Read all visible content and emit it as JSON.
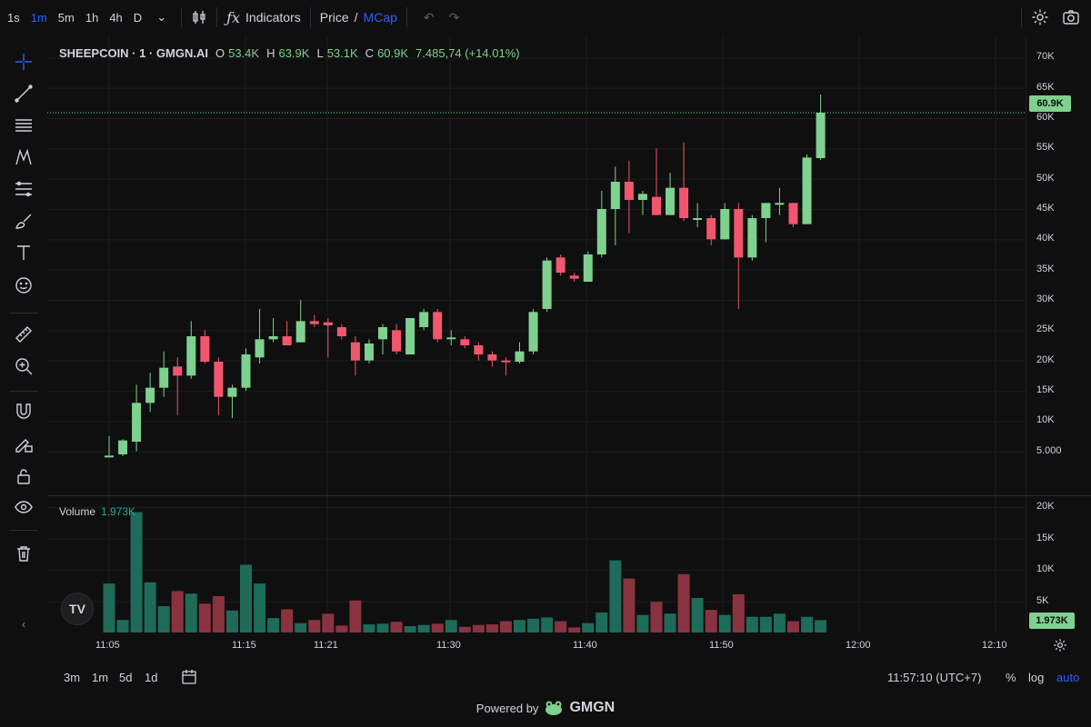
{
  "toolbar": {
    "timeframes": [
      "1s",
      "1m",
      "5m",
      "1h",
      "4h",
      "D"
    ],
    "active_timeframe": "1m",
    "indicators_label": "Indicators",
    "price_label": "Price",
    "slash": "/",
    "mcap_label": "MCap"
  },
  "legend": {
    "symbol": "SHEEPCOIN · 1 · GMGN.AI",
    "open_label": "O",
    "open": "53.4K",
    "high_label": "H",
    "high": "63.9K",
    "low_label": "L",
    "low": "53.1K",
    "close_label": "C",
    "close": "60.9K",
    "change": "7.485,74 (+14.01%)"
  },
  "volume_legend": {
    "label": "Volume",
    "value": "1.973K"
  },
  "price_tag": "60.9K",
  "volume_tag": "1.973K",
  "price_axis": [
    "70K",
    "65K",
    "60K",
    "55K",
    "50K",
    "45K",
    "40K",
    "35K",
    "30K",
    "25K",
    "20K",
    "15K",
    "10K",
    "5.000"
  ],
  "volume_axis": [
    "20K",
    "15K",
    "10K",
    "5K"
  ],
  "time_axis": [
    "11:05",
    "11:15",
    "11:21",
    "11:30",
    "11:40",
    "11:50",
    "12:00",
    "12:10"
  ],
  "bottom": {
    "ranges": [
      "3m",
      "1m",
      "5d",
      "1d"
    ],
    "clock": "11:57:10 (UTC+7)",
    "percent": "%",
    "log": "log",
    "auto": "auto"
  },
  "powered_by": {
    "text": "Powered by",
    "brand": "GMGN"
  },
  "tv_logo": "TV",
  "colors": {
    "up": "#7fd18f",
    "down": "#f2566f",
    "vol_up": "#1e6b5a",
    "vol_down": "#8a3340",
    "accent": "#2962ff"
  },
  "chart_data": {
    "type": "candlestick",
    "candles": [
      {
        "t": "11:05",
        "o": 4.2,
        "h": 7.5,
        "l": 4.0,
        "c": 4.3
      },
      {
        "t": "11:06",
        "o": 4.5,
        "h": 7.0,
        "l": 4.2,
        "c": 6.8
      },
      {
        "t": "11:07",
        "o": 6.6,
        "h": 16.0,
        "l": 5.0,
        "c": 13.0
      },
      {
        "t": "11:08",
        "o": 13.0,
        "h": 18.0,
        "l": 11.5,
        "c": 15.5
      },
      {
        "t": "11:09",
        "o": 15.5,
        "h": 21.5,
        "l": 14.0,
        "c": 18.8
      },
      {
        "t": "11:10",
        "o": 19.0,
        "h": 20.5,
        "l": 11.0,
        "c": 17.5
      },
      {
        "t": "11:11",
        "o": 17.5,
        "h": 26.5,
        "l": 17.0,
        "c": 24.0
      },
      {
        "t": "11:12",
        "o": 24.0,
        "h": 25.0,
        "l": 19.5,
        "c": 19.8
      },
      {
        "t": "11:13",
        "o": 19.8,
        "h": 20.5,
        "l": 11.0,
        "c": 14.0
      },
      {
        "t": "11:14",
        "o": 14.0,
        "h": 16.0,
        "l": 10.5,
        "c": 15.5
      },
      {
        "t": "11:15",
        "o": 15.5,
        "h": 22.0,
        "l": 15.0,
        "c": 21.0
      },
      {
        "t": "11:16",
        "o": 20.5,
        "h": 28.5,
        "l": 19.5,
        "c": 23.5
      },
      {
        "t": "11:17",
        "o": 23.5,
        "h": 27.0,
        "l": 23.0,
        "c": 24.0
      },
      {
        "t": "11:18",
        "o": 24.0,
        "h": 26.5,
        "l": 22.5,
        "c": 22.5
      },
      {
        "t": "11:19",
        "o": 23.0,
        "h": 30.0,
        "l": 23.0,
        "c": 26.5
      },
      {
        "t": "11:20",
        "o": 26.5,
        "h": 27.5,
        "l": 25.5,
        "c": 26.0
      },
      {
        "t": "11:21",
        "o": 26.3,
        "h": 27.0,
        "l": 20.5,
        "c": 25.8
      },
      {
        "t": "11:22",
        "o": 25.5,
        "h": 26.0,
        "l": 23.5,
        "c": 24.0
      },
      {
        "t": "11:23",
        "o": 23.0,
        "h": 24.0,
        "l": 17.5,
        "c": 20.0
      },
      {
        "t": "11:24",
        "o": 20.0,
        "h": 23.5,
        "l": 19.5,
        "c": 22.8
      },
      {
        "t": "11:25",
        "o": 23.5,
        "h": 26.0,
        "l": 21.0,
        "c": 25.5
      },
      {
        "t": "11:26",
        "o": 25.0,
        "h": 26.0,
        "l": 21.0,
        "c": 21.5
      },
      {
        "t": "11:27",
        "o": 21.0,
        "h": 27.0,
        "l": 21.0,
        "c": 27.0
      },
      {
        "t": "11:28",
        "o": 25.5,
        "h": 28.5,
        "l": 25.0,
        "c": 28.0
      },
      {
        "t": "11:29",
        "o": 28.0,
        "h": 28.5,
        "l": 23.0,
        "c": 23.5
      },
      {
        "t": "11:30",
        "o": 23.5,
        "h": 25.0,
        "l": 22.5,
        "c": 23.8
      },
      {
        "t": "11:31",
        "o": 23.5,
        "h": 24.0,
        "l": 22.0,
        "c": 22.5
      },
      {
        "t": "11:32",
        "o": 22.5,
        "h": 23.0,
        "l": 20.0,
        "c": 21.0
      },
      {
        "t": "11:33",
        "o": 21.0,
        "h": 21.5,
        "l": 19.0,
        "c": 20.0
      },
      {
        "t": "11:34",
        "o": 20.0,
        "h": 20.5,
        "l": 17.5,
        "c": 19.8
      },
      {
        "t": "11:35",
        "o": 19.8,
        "h": 23.0,
        "l": 19.5,
        "c": 21.5
      },
      {
        "t": "11:36",
        "o": 21.5,
        "h": 28.5,
        "l": 21.0,
        "c": 28.0
      },
      {
        "t": "11:37",
        "o": 28.5,
        "h": 37.0,
        "l": 28.0,
        "c": 36.5
      },
      {
        "t": "11:38",
        "o": 37.0,
        "h": 37.5,
        "l": 34.0,
        "c": 34.5
      },
      {
        "t": "11:39",
        "o": 34.0,
        "h": 34.5,
        "l": 33.0,
        "c": 33.5
      },
      {
        "t": "11:40",
        "o": 33.0,
        "h": 38.0,
        "l": 33.0,
        "c": 37.5
      },
      {
        "t": "11:41",
        "o": 37.5,
        "h": 48.0,
        "l": 37.0,
        "c": 45.0
      },
      {
        "t": "11:42",
        "o": 45.0,
        "h": 52.0,
        "l": 39.0,
        "c": 49.5
      },
      {
        "t": "11:43",
        "o": 49.5,
        "h": 53.0,
        "l": 41.0,
        "c": 46.5
      },
      {
        "t": "11:44",
        "o": 46.5,
        "h": 48.0,
        "l": 44.0,
        "c": 47.5
      },
      {
        "t": "11:45",
        "o": 47.0,
        "h": 55.0,
        "l": 44.0,
        "c": 44.0
      },
      {
        "t": "11:46",
        "o": 44.0,
        "h": 51.0,
        "l": 44.0,
        "c": 48.5
      },
      {
        "t": "11:47",
        "o": 48.5,
        "h": 56.0,
        "l": 43.0,
        "c": 43.5
      },
      {
        "t": "11:48",
        "o": 43.5,
        "h": 46.0,
        "l": 42.0,
        "c": 43.5
      },
      {
        "t": "11:49",
        "o": 43.5,
        "h": 44.0,
        "l": 39.0,
        "c": 40.0
      },
      {
        "t": "11:50",
        "o": 40.0,
        "h": 46.0,
        "l": 40.0,
        "c": 45.0
      },
      {
        "t": "11:51",
        "o": 45.0,
        "h": 46.0,
        "l": 28.5,
        "c": 37.0
      },
      {
        "t": "11:52",
        "o": 37.0,
        "h": 44.0,
        "l": 36.5,
        "c": 43.5
      },
      {
        "t": "11:53",
        "o": 43.5,
        "h": 46.0,
        "l": 39.5,
        "c": 46.0
      },
      {
        "t": "11:54",
        "o": 46.0,
        "h": 48.5,
        "l": 44.0,
        "c": 46.0
      },
      {
        "t": "11:55",
        "o": 46.0,
        "h": 46.0,
        "l": 42.0,
        "c": 42.5
      },
      {
        "t": "11:56",
        "o": 42.5,
        "h": 54.0,
        "l": 42.5,
        "c": 53.5
      },
      {
        "t": "11:57",
        "o": 53.4,
        "h": 63.9,
        "l": 53.1,
        "c": 60.9
      }
    ],
    "volumes": [
      7.8,
      2.0,
      19.2,
      8.0,
      4.2,
      6.6,
      6.2,
      4.6,
      5.8,
      3.5,
      10.8,
      7.8,
      2.3,
      3.7,
      1.5,
      2.0,
      3.0,
      1.1,
      5.1,
      1.3,
      1.4,
      1.7,
      1.0,
      1.2,
      1.4,
      2.0,
      0.9,
      1.2,
      1.3,
      1.8,
      2.0,
      2.2,
      2.4,
      1.8,
      0.8,
      1.5,
      3.2,
      11.5,
      8.6,
      2.8,
      4.9,
      3.0,
      9.3,
      5.5,
      3.6,
      2.8,
      6.1,
      2.5,
      2.5,
      3.0,
      1.8,
      2.5,
      1.973
    ],
    "price_ylim": [
      0,
      72
    ],
    "volume_ylim": [
      0,
      20
    ],
    "x_label": "",
    "y_label": ""
  }
}
